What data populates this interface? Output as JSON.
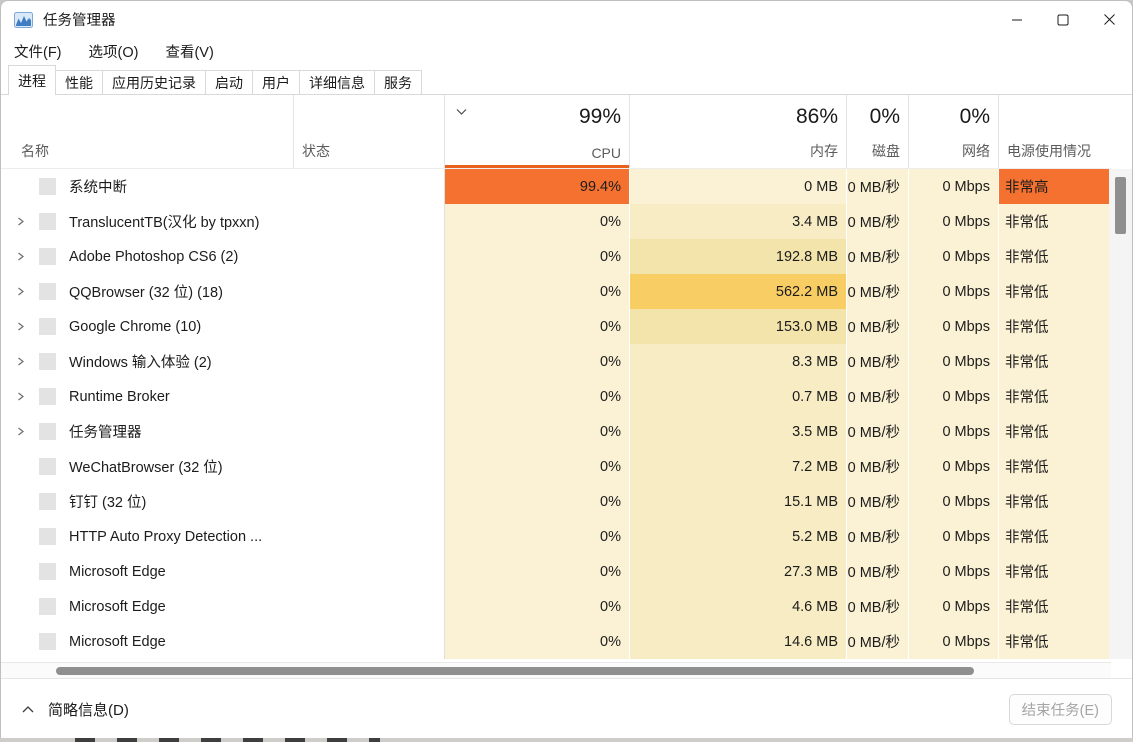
{
  "window": {
    "title": "任务管理器"
  },
  "menu": {
    "items": [
      {
        "key": "file",
        "label": "文件(F)"
      },
      {
        "key": "options",
        "label": "选项(O)"
      },
      {
        "key": "view",
        "label": "查看(V)"
      }
    ]
  },
  "tabs": {
    "items": [
      {
        "key": "processes",
        "label": "进程",
        "selected": true
      },
      {
        "key": "performance",
        "label": "性能",
        "selected": false
      },
      {
        "key": "app-history",
        "label": "应用历史记录",
        "selected": false
      },
      {
        "key": "startup",
        "label": "启动",
        "selected": false
      },
      {
        "key": "users",
        "label": "用户",
        "selected": false
      },
      {
        "key": "details",
        "label": "详细信息",
        "selected": false
      },
      {
        "key": "services",
        "label": "服务",
        "selected": false
      }
    ]
  },
  "table": {
    "name_header": "名称",
    "status_header": "状态",
    "usage_headers": [
      {
        "key": "cpu",
        "percent": "99%",
        "label": "CPU",
        "sorted": true,
        "align": "right"
      },
      {
        "key": "mem",
        "percent": "86%",
        "label": "内存",
        "sorted": false,
        "align": "right"
      },
      {
        "key": "disk",
        "percent": "0%",
        "label": "磁盘",
        "sorted": false,
        "align": "right"
      },
      {
        "key": "net",
        "percent": "0%",
        "label": "网络",
        "sorted": false,
        "align": "right"
      },
      {
        "key": "power",
        "percent": "",
        "label": "电源使用情况",
        "sorted": false,
        "align": "left"
      }
    ],
    "rows": [
      {
        "name": "系统中断",
        "expandable": false,
        "status": "",
        "cpu": "99.4%",
        "mem": "0 MB",
        "disk": "0 MB/秒",
        "net": "0 Mbps",
        "power": "非常高",
        "levels": {
          "cpu": "hi",
          "mem": "l0",
          "power": "hi"
        }
      },
      {
        "name": "TranslucentTB(汉化 by tpxxn)",
        "expandable": true,
        "status": "",
        "cpu": "0%",
        "mem": "3.4 MB",
        "disk": "0 MB/秒",
        "net": "0 Mbps",
        "power": "非常低",
        "levels": {
          "cpu": "l0",
          "mem": "l1",
          "power": "l0"
        }
      },
      {
        "name": "Adobe Photoshop CS6 (2)",
        "expandable": true,
        "status": "",
        "cpu": "0%",
        "mem": "192.8 MB",
        "disk": "0 MB/秒",
        "net": "0 Mbps",
        "power": "非常低",
        "levels": {
          "cpu": "l0",
          "mem": "l2",
          "power": "l0"
        }
      },
      {
        "name": "QQBrowser (32 位) (18)",
        "expandable": true,
        "status": "",
        "cpu": "0%",
        "mem": "562.2 MB",
        "disk": "0 MB/秒",
        "net": "0 Mbps",
        "power": "非常低",
        "levels": {
          "cpu": "l0",
          "mem": "l3",
          "power": "l0"
        }
      },
      {
        "name": "Google Chrome (10)",
        "expandable": true,
        "status": "",
        "cpu": "0%",
        "mem": "153.0 MB",
        "disk": "0 MB/秒",
        "net": "0 Mbps",
        "power": "非常低",
        "levels": {
          "cpu": "l0",
          "mem": "l2",
          "power": "l0"
        }
      },
      {
        "name": "Windows 输入体验 (2)",
        "expandable": true,
        "status": "",
        "cpu": "0%",
        "mem": "8.3 MB",
        "disk": "0 MB/秒",
        "net": "0 Mbps",
        "power": "非常低",
        "levels": {
          "cpu": "l0",
          "mem": "l1",
          "power": "l0"
        }
      },
      {
        "name": "Runtime Broker",
        "expandable": true,
        "status": "",
        "cpu": "0%",
        "mem": "0.7 MB",
        "disk": "0 MB/秒",
        "net": "0 Mbps",
        "power": "非常低",
        "levels": {
          "cpu": "l0",
          "mem": "l1",
          "power": "l0"
        }
      },
      {
        "name": "任务管理器",
        "expandable": true,
        "status": "",
        "cpu": "0%",
        "mem": "3.5 MB",
        "disk": "0 MB/秒",
        "net": "0 Mbps",
        "power": "非常低",
        "levels": {
          "cpu": "l0",
          "mem": "l1",
          "power": "l0"
        }
      },
      {
        "name": "WeChatBrowser (32 位)",
        "expandable": false,
        "status": "",
        "cpu": "0%",
        "mem": "7.2 MB",
        "disk": "0 MB/秒",
        "net": "0 Mbps",
        "power": "非常低",
        "levels": {
          "cpu": "l0",
          "mem": "l1",
          "power": "l0"
        }
      },
      {
        "name": "钉钉 (32 位)",
        "expandable": false,
        "status": "",
        "cpu": "0%",
        "mem": "15.1 MB",
        "disk": "0 MB/秒",
        "net": "0 Mbps",
        "power": "非常低",
        "levels": {
          "cpu": "l0",
          "mem": "l1",
          "power": "l0"
        }
      },
      {
        "name": "HTTP Auto Proxy Detection ...",
        "expandable": false,
        "status": "",
        "cpu": "0%",
        "mem": "5.2 MB",
        "disk": "0 MB/秒",
        "net": "0 Mbps",
        "power": "非常低",
        "levels": {
          "cpu": "l0",
          "mem": "l1",
          "power": "l0"
        }
      },
      {
        "name": "Microsoft Edge",
        "expandable": false,
        "status": "",
        "cpu": "0%",
        "mem": "27.3 MB",
        "disk": "0 MB/秒",
        "net": "0 Mbps",
        "power": "非常低",
        "levels": {
          "cpu": "l0",
          "mem": "l1",
          "power": "l0"
        }
      },
      {
        "name": "Microsoft Edge",
        "expandable": false,
        "status": "",
        "cpu": "0%",
        "mem": "4.6 MB",
        "disk": "0 MB/秒",
        "net": "0 Mbps",
        "power": "非常低",
        "levels": {
          "cpu": "l0",
          "mem": "l1",
          "power": "l0"
        }
      },
      {
        "name": "Microsoft Edge",
        "expandable": false,
        "status": "",
        "cpu": "0%",
        "mem": "14.6 MB",
        "disk": "0 MB/秒",
        "net": "0 Mbps",
        "power": "非常低",
        "levels": {
          "cpu": "l0",
          "mem": "l1",
          "power": "l0"
        }
      }
    ]
  },
  "footer": {
    "details_toggle": "简略信息(D)",
    "end_task_button": "结束任务(E)"
  },
  "colors": {
    "heat_hi": "#F4712F",
    "heat_l0": "#FBF2D5",
    "heat_l1": "#F7ECC3",
    "heat_l2": "#F3E4AC",
    "heat_l3": "#F8CE64",
    "sort_underline": "#E9611C",
    "scroll_thumb": "#8F8F8F"
  }
}
